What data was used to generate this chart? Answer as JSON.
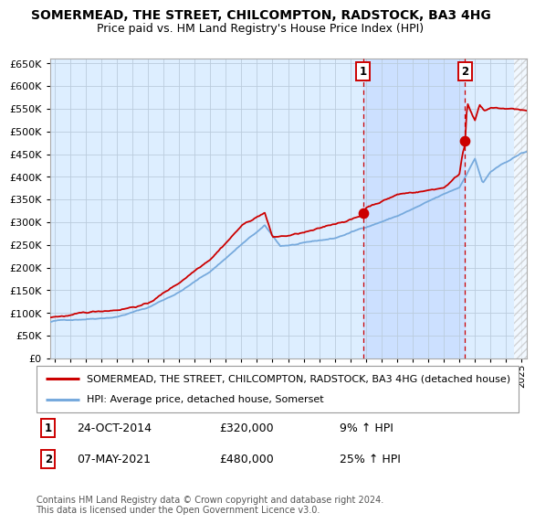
{
  "title": "SOMERMEAD, THE STREET, CHILCOMPTON, RADSTOCK, BA3 4HG",
  "subtitle": "Price paid vs. HM Land Registry's House Price Index (HPI)",
  "legend_line1": "SOMERMEAD, THE STREET, CHILCOMPTON, RADSTOCK, BA3 4HG (detached house)",
  "legend_line2": "HPI: Average price, detached house, Somerset",
  "annotation1_label": "1",
  "annotation1_date": "24-OCT-2014",
  "annotation1_price": "£320,000",
  "annotation1_hpi": "9% ↑ HPI",
  "annotation2_label": "2",
  "annotation2_date": "07-MAY-2021",
  "annotation2_price": "£480,000",
  "annotation2_hpi": "25% ↑ HPI",
  "sale1_x": 2014.82,
  "sale1_y": 320000,
  "sale2_x": 2021.36,
  "sale2_y": 480000,
  "red_color": "#cc0000",
  "blue_color": "#77aadd",
  "bg_color": "#ddeeff",
  "grid_color": "#bbccdd",
  "shade_color": "#cce0ff",
  "copyright_text": "Contains HM Land Registry data © Crown copyright and database right 2024.\nThis data is licensed under the Open Government Licence v3.0.",
  "ylim": [
    0,
    660000
  ],
  "xlim_start": 1994.7,
  "xlim_end": 2025.3,
  "hatch_start": 2024.5
}
